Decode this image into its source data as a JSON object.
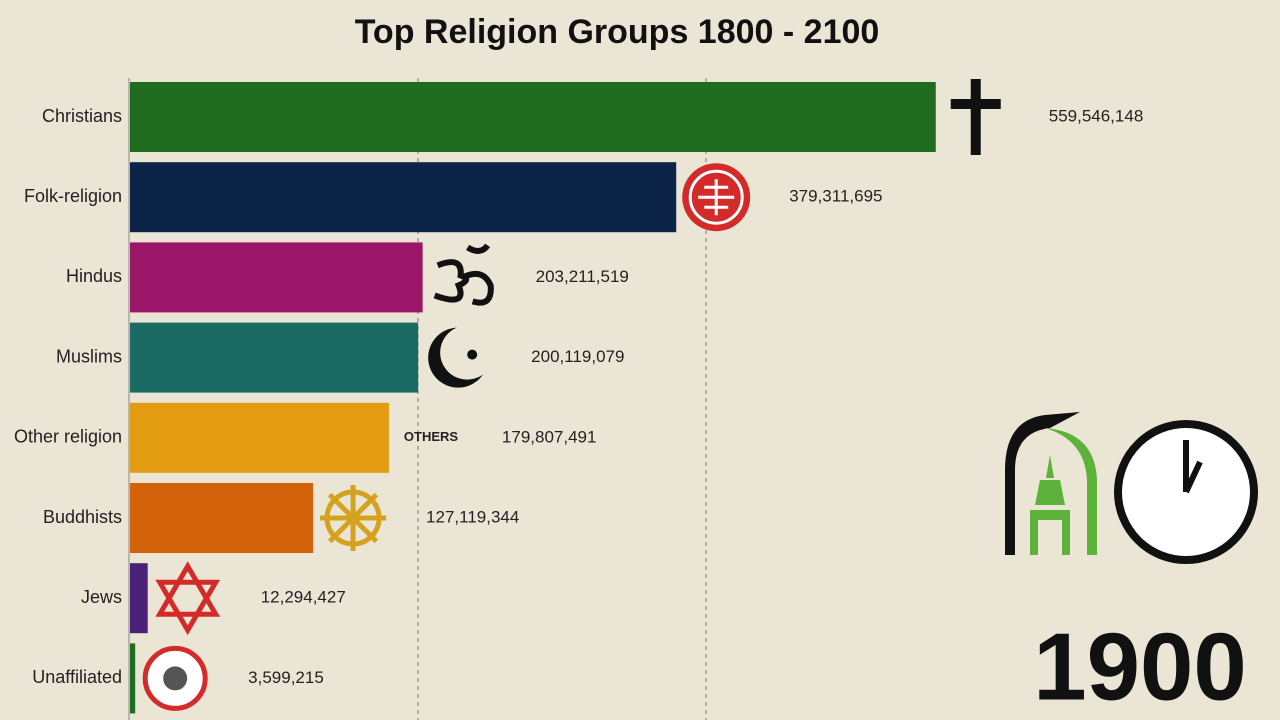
{
  "chart_data": {
    "type": "bar",
    "orientation": "horizontal",
    "title": "Top Religion Groups 1800 - 2100",
    "categories": [
      "Christians",
      "Folk-religion",
      "Hindus",
      "Muslims",
      "Other religion",
      "Buddhists",
      "Jews",
      "Unaffiliated"
    ],
    "values": [
      559546148,
      379311695,
      203211519,
      200119079,
      179807491,
      127119344,
      12294427,
      3599215
    ],
    "value_labels": [
      "559,546,148",
      "379,311,695",
      "203,211,519",
      "200,119,079",
      "179,807,491",
      "127,119,344",
      "12,294,427",
      "3,599,215"
    ],
    "colors": [
      "#1f6b1f",
      "#0b2347",
      "#9b1668",
      "#1b6b64",
      "#e39b12",
      "#d4620b",
      "#4b2079",
      "#1f6b1f"
    ],
    "xlim": [
      0,
      600000000
    ],
    "xticks": [
      200000000,
      400000000
    ],
    "grid": true,
    "icon_label": "OTHERS",
    "year": "1900"
  }
}
